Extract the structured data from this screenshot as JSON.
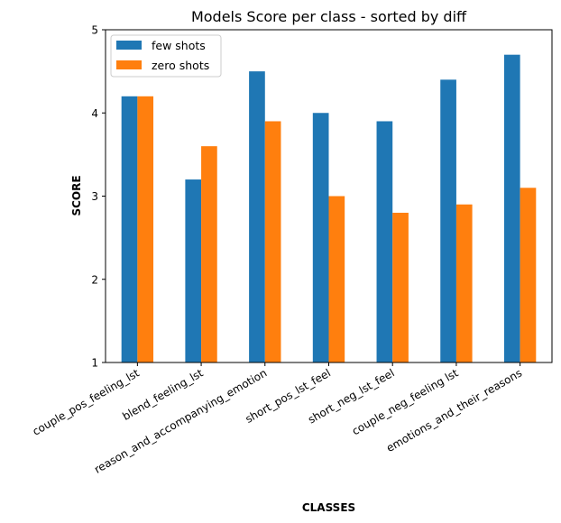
{
  "chart_data": {
    "type": "bar",
    "title": "Models Score per class - sorted by diff",
    "xlabel": "CLASSES",
    "ylabel": "SCORE",
    "ylim": [
      1,
      5
    ],
    "yticks": [
      "1",
      "2",
      "3",
      "4",
      "5"
    ],
    "categories": [
      "couple_pos_feeling_lst",
      "blend_feeling_lst",
      "reason_and_accompanying_emotion",
      "short_pos_lst_feel",
      "short_neg_lst_feel",
      "couple_neg_feeling lst",
      "emotions_and_their_reasons"
    ],
    "series": [
      {
        "name": "few shots",
        "color": "#1f77b4",
        "values": [
          4.2,
          3.2,
          4.5,
          4.0,
          3.9,
          4.4,
          4.7
        ]
      },
      {
        "name": "zero shots",
        "color": "#ff7f0e",
        "values": [
          4.2,
          3.6,
          3.9,
          3.0,
          2.8,
          2.9,
          3.1
        ]
      }
    ],
    "grid": false,
    "legend_position": "top-left"
  }
}
